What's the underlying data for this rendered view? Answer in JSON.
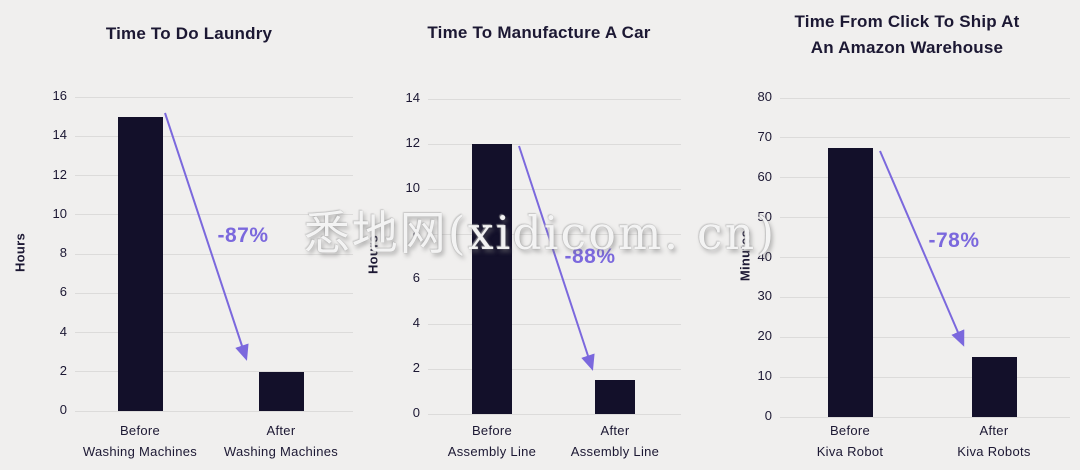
{
  "watermark": "悉地网(xidicom. cn)",
  "colors": {
    "background": "#f0efee",
    "bar": "#13102a",
    "text": "#1c1833",
    "gridline": "#dcdbda",
    "accent": "#7b68dd"
  },
  "chart_data": [
    {
      "type": "bar",
      "title": "Time To Do Laundry",
      "ylabel": "Hours",
      "xlabel": "",
      "ylim": [
        0,
        16
      ],
      "yticks": [
        0,
        2,
        4,
        6,
        8,
        10,
        12,
        14,
        16
      ],
      "grid": true,
      "categories": [
        [
          "Before",
          "Washing Machines"
        ],
        [
          "After",
          "Washing Machines"
        ]
      ],
      "values": [
        15,
        2
      ],
      "annotation": "-87%"
    },
    {
      "type": "bar",
      "title": "Time To Manufacture A Car",
      "ylabel": "Hours",
      "xlabel": "",
      "ylim": [
        0,
        14
      ],
      "yticks": [
        0,
        2,
        4,
        6,
        8,
        10,
        12,
        14
      ],
      "grid": true,
      "categories": [
        [
          "Before",
          "Assembly Line"
        ],
        [
          "After",
          "Assembly Line"
        ]
      ],
      "values": [
        12,
        1.5
      ],
      "annotation": "-88%"
    },
    {
      "type": "bar",
      "title": "Time From Click To Ship At An Amazon Warehouse",
      "ylabel": "Minutes",
      "xlabel": "",
      "ylim": [
        0,
        80
      ],
      "yticks": [
        0,
        10,
        20,
        30,
        40,
        50,
        60,
        70,
        80
      ],
      "grid": true,
      "categories": [
        [
          "Before",
          "Kiva Robot"
        ],
        [
          "After",
          "Kiva Robots"
        ]
      ],
      "values": [
        67.5,
        15
      ],
      "annotation": "-78%"
    }
  ]
}
